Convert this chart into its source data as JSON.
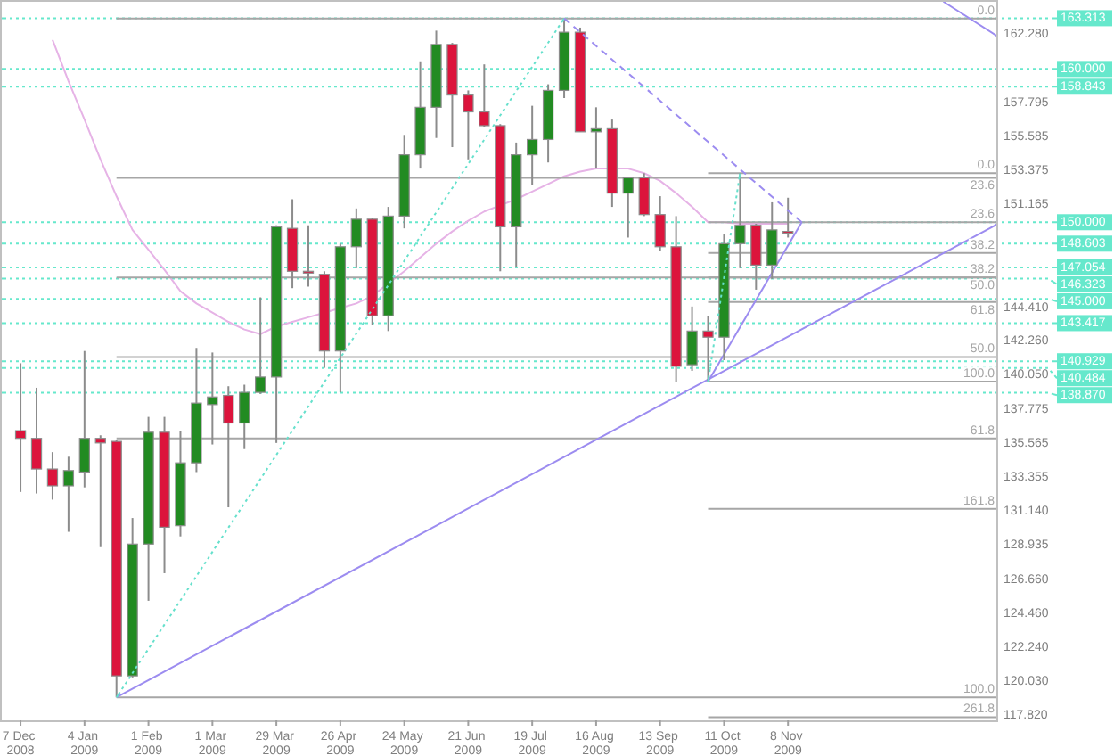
{
  "chart_data": {
    "type": "candlestick",
    "x": [
      "2008-12-07",
      "2008-12-14",
      "2008-12-21",
      "2008-12-28",
      "2009-01-04",
      "2009-01-11",
      "2009-01-18",
      "2009-01-25",
      "2009-02-01",
      "2009-02-08",
      "2009-02-15",
      "2009-02-22",
      "2009-03-01",
      "2009-03-08",
      "2009-03-15",
      "2009-03-22",
      "2009-03-29",
      "2009-04-05",
      "2009-04-12",
      "2009-04-19",
      "2009-04-26",
      "2009-05-03",
      "2009-05-10",
      "2009-05-17",
      "2009-05-24",
      "2009-05-31",
      "2009-06-07",
      "2009-06-14",
      "2009-06-21",
      "2009-06-28",
      "2009-07-05",
      "2009-07-12",
      "2009-07-19",
      "2009-07-26",
      "2009-08-02",
      "2009-08-09",
      "2009-08-16",
      "2009-08-23",
      "2009-08-30",
      "2009-09-06",
      "2009-09-13",
      "2009-09-20",
      "2009-09-27",
      "2009-10-04",
      "2009-10-11",
      "2009-10-18",
      "2009-10-25",
      "2009-11-01",
      "2009-11-08"
    ],
    "ohlc": [
      [
        136.4,
        140.8,
        132.4,
        135.9
      ],
      [
        135.9,
        139.2,
        132.3,
        133.9
      ],
      [
        133.9,
        135.0,
        131.9,
        132.8
      ],
      [
        132.8,
        134.7,
        129.8,
        133.8
      ],
      [
        133.7,
        141.6,
        132.7,
        135.9
      ],
      [
        135.9,
        136.1,
        128.8,
        135.6
      ],
      [
        135.7,
        135.8,
        119.0,
        120.4
      ],
      [
        120.4,
        130.7,
        120.3,
        129.0
      ],
      [
        129.0,
        137.3,
        125.3,
        136.3
      ],
      [
        136.3,
        137.3,
        127.1,
        130.1
      ],
      [
        130.2,
        136.4,
        129.5,
        134.3
      ],
      [
        134.3,
        141.8,
        133.7,
        138.2
      ],
      [
        138.1,
        141.5,
        135.5,
        138.6
      ],
      [
        138.7,
        139.3,
        131.4,
        136.9
      ],
      [
        136.9,
        139.4,
        135.2,
        138.9
      ],
      [
        138.9,
        145.1,
        138.8,
        139.9
      ],
      [
        139.9,
        149.8,
        135.6,
        149.7
      ],
      [
        149.6,
        151.5,
        145.7,
        146.8
      ],
      [
        146.8,
        149.8,
        145.8,
        146.7
      ],
      [
        146.6,
        146.8,
        140.5,
        141.6
      ],
      [
        141.6,
        148.6,
        138.9,
        148.4
      ],
      [
        148.4,
        150.9,
        147.0,
        150.2
      ],
      [
        150.2,
        150.3,
        143.3,
        143.9
      ],
      [
        143.9,
        151.0,
        142.9,
        150.4
      ],
      [
        150.4,
        155.7,
        149.6,
        154.4
      ],
      [
        154.4,
        160.5,
        153.5,
        157.5
      ],
      [
        157.5,
        162.5,
        155.5,
        161.6
      ],
      [
        161.6,
        161.7,
        154.9,
        158.3
      ],
      [
        158.3,
        158.6,
        154.1,
        157.2
      ],
      [
        157.2,
        160.3,
        156.2,
        156.3
      ],
      [
        156.3,
        156.4,
        146.8,
        149.7
      ],
      [
        149.7,
        155.2,
        147.1,
        154.4
      ],
      [
        154.4,
        157.6,
        152.4,
        155.4
      ],
      [
        155.4,
        159.0,
        153.9,
        158.6
      ],
      [
        158.6,
        163.3,
        158.1,
        162.4
      ],
      [
        162.4,
        162.7,
        155.9,
        155.9
      ],
      [
        155.9,
        157.5,
        153.5,
        156.1
      ],
      [
        156.1,
        156.7,
        151.0,
        151.9
      ],
      [
        151.9,
        152.9,
        149.0,
        152.9
      ],
      [
        152.9,
        153.2,
        150.4,
        150.5
      ],
      [
        150.5,
        151.7,
        148.1,
        148.4
      ],
      [
        148.4,
        150.4,
        139.6,
        140.6
      ],
      [
        140.7,
        144.5,
        140.3,
        142.9
      ],
      [
        142.9,
        143.9,
        139.6,
        142.5
      ],
      [
        142.5,
        149.2,
        141.0,
        148.6
      ],
      [
        148.6,
        153.2,
        147.0,
        149.8
      ],
      [
        149.8,
        149.9,
        145.6,
        147.2
      ],
      [
        147.2,
        151.3,
        146.3,
        149.5
      ],
      [
        149.4,
        151.6,
        149.0,
        149.3
      ]
    ],
    "colors": [
      "#dc143c",
      "#dc143c",
      "#dc143c",
      "#228b22",
      "#228b22",
      "#dc143c",
      "#dc143c",
      "#228b22",
      "#228b22",
      "#dc143c",
      "#228b22",
      "#228b22",
      "#228b22",
      "#dc143c",
      "#228b22",
      "#228b22",
      "#228b22",
      "#dc143c",
      "#dc143c",
      "#dc143c",
      "#228b22",
      "#228b22",
      "#dc143c",
      "#228b22",
      "#228b22",
      "#228b22",
      "#228b22",
      "#dc143c",
      "#dc143c",
      "#dc143c",
      "#dc143c",
      "#228b22",
      "#228b22",
      "#228b22",
      "#228b22",
      "#dc143c",
      "#228b22",
      "#dc143c",
      "#228b22",
      "#dc143c",
      "#dc143c",
      "#dc143c",
      "#228b22",
      "#dc143c",
      "#228b22",
      "#228b22",
      "#dc143c",
      "#228b22",
      "#dc143c"
    ],
    "series": [
      {
        "type": "line",
        "color": "#e6b3e6",
        "values": [
          null,
          null,
          161.9,
          159.2,
          156.7,
          154.1,
          151.7,
          149.5,
          148.2,
          146.9,
          145.5,
          144.7,
          144.1,
          143.5,
          143.0,
          142.7,
          143.2,
          143.5,
          143.8,
          144.1,
          144.4,
          144.7,
          145.2,
          146.0,
          146.8,
          147.7,
          148.6,
          149.4,
          150.1,
          150.7,
          151.1,
          151.5,
          152.0,
          152.5,
          153.0,
          153.3,
          153.5,
          153.5,
          153.5,
          153.2,
          152.7,
          151.9,
          151.0,
          150.0,
          150.0,
          149.9,
          149.9,
          149.9,
          149.9
        ]
      },
      {
        "type": "line",
        "name": "0.0",
        "color": "#a6a6a6",
        "x": [
          "2009-01-18",
          "2010-02-08"
        ],
        "values": [
          163.3,
          163.3
        ]
      },
      {
        "type": "line",
        "name": "23.6",
        "color": "#a6a6a6",
        "x": [
          "2009-01-18",
          "2010-02-08"
        ],
        "values": [
          152.9,
          152.9
        ]
      },
      {
        "type": "line",
        "name": "38.2",
        "color": "#a6a6a6",
        "x": [
          "2009-01-18",
          "2010-02-08"
        ],
        "values": [
          146.4,
          146.4
        ]
      },
      {
        "type": "line",
        "name": "50.0",
        "color": "#a6a6a6",
        "x": [
          "2009-01-18",
          "2010-02-08"
        ],
        "values": [
          141.2,
          141.2
        ]
      },
      {
        "type": "line",
        "name": "61.8",
        "color": "#a6a6a6",
        "x": [
          "2009-01-18",
          "2010-02-08"
        ],
        "values": [
          135.9,
          135.9
        ]
      },
      {
        "type": "line",
        "name": "100.0",
        "color": "#a6a6a6",
        "x": [
          "2009-01-18",
          "2010-02-08"
        ],
        "values": [
          119.0,
          119.0
        ]
      },
      {
        "type": "line",
        "name": "0.0",
        "color": "#a6a6a6",
        "x": [
          "2009-10-04",
          "2010-02-08"
        ],
        "values": [
          153.2,
          153.2
        ]
      },
      {
        "type": "line",
        "name": "23.6",
        "color": "#a6a6a6",
        "x": [
          "2009-10-04",
          "2010-02-08"
        ],
        "values": [
          150.0,
          150.0
        ]
      },
      {
        "type": "line",
        "name": "38.2",
        "color": "#a6a6a6",
        "x": [
          "2009-10-04",
          "2010-02-08"
        ],
        "values": [
          148.0,
          148.0
        ]
      },
      {
        "type": "line",
        "name": "50.0",
        "color": "#a6a6a6",
        "x": [
          "2009-10-04",
          "2010-02-08"
        ],
        "values": [
          146.4,
          146.4
        ]
      },
      {
        "type": "line",
        "name": "61.8",
        "color": "#a6a6a6",
        "x": [
          "2009-10-04",
          "2010-02-08"
        ],
        "values": [
          144.8,
          144.8
        ]
      },
      {
        "type": "line",
        "name": "100.0",
        "color": "#a6a6a6",
        "x": [
          "2009-10-04",
          "2010-02-08"
        ],
        "values": [
          139.6,
          139.6
        ]
      },
      {
        "type": "line",
        "name": "161.8",
        "color": "#a6a6a6",
        "x": [
          "2009-10-04",
          "2010-02-08"
        ],
        "values": [
          131.3,
          131.3
        ]
      },
      {
        "type": "line",
        "name": "261.8",
        "color": "#a6a6a6",
        "x": [
          "2009-10-04",
          "2010-02-08"
        ],
        "values": [
          117.7,
          117.7
        ]
      },
      {
        "type": "line",
        "color": "#66e0cc",
        "line_style": "dotted",
        "x": [
          "2009-01-18",
          "2009-08-02"
        ],
        "values": [
          119.0,
          163.3
        ]
      },
      {
        "type": "line",
        "color": "#66e0cc",
        "line_style": "dotted",
        "x": [
          "2009-10-04",
          "2009-10-18"
        ],
        "values": [
          139.6,
          153.2
        ]
      },
      {
        "type": "line",
        "color": "#9c8cf0",
        "x": [
          "2009-01-18",
          "2010-02-08"
        ],
        "values": [
          119.0,
          149.9
        ]
      },
      {
        "type": "line",
        "color": "#9c8cf0",
        "x": [
          "2009-10-04",
          "2009-11-14"
        ],
        "values": [
          139.6,
          150.0
        ]
      },
      {
        "type": "line",
        "color": "#9c8cf0",
        "line_style": "dashed",
        "x": [
          "2009-08-02",
          "2009-11-14"
        ],
        "values": [
          163.3,
          150.0
        ]
      },
      {
        "type": "line",
        "color": "#9c8cf0",
        "x": [
          "2010-01-15",
          "2010-02-08"
        ],
        "values": [
          164.4,
          162.1
        ]
      }
    ],
    "ref_lines": [
      {
        "axis": "y",
        "value": 163.313,
        "label": "163.313",
        "color": "#66e8cc",
        "line_style": "dotted"
      },
      {
        "axis": "y",
        "value": 160.0,
        "label": "160.000",
        "color": "#66e8cc",
        "line_style": "dotted"
      },
      {
        "axis": "y",
        "value": 158.843,
        "label": "158.843",
        "color": "#66e8cc",
        "line_style": "dotted"
      },
      {
        "axis": "y",
        "value": 150.0,
        "label": "150.000",
        "color": "#66e8cc",
        "line_style": "dotted"
      },
      {
        "axis": "y",
        "value": 148.603,
        "label": "148.603",
        "color": "#66e8cc",
        "line_style": "dotted"
      },
      {
        "axis": "y",
        "value": 147.054,
        "label": "147.054",
        "color": "#66e8cc",
        "line_style": "dotted"
      },
      {
        "axis": "y",
        "value": 146.323,
        "label": "146.323",
        "color": "#66e8cc",
        "line_style": "dotted"
      },
      {
        "axis": "y",
        "value": 145.0,
        "label": "145.000",
        "color": "#66e8cc",
        "line_style": "dotted"
      },
      {
        "axis": "y",
        "value": 143.417,
        "label": "143.417",
        "color": "#66e8cc",
        "line_style": "dotted"
      },
      {
        "axis": "y",
        "value": 140.929,
        "label": "140.929",
        "color": "#66e8cc",
        "line_style": "dotted"
      },
      {
        "axis": "y",
        "value": 140.484,
        "label": "140.484",
        "color": "#66e8cc",
        "line_style": "dotted"
      },
      {
        "axis": "y",
        "value": 138.87,
        "label": "138.870",
        "color": "#66e8cc",
        "line_style": "dotted"
      }
    ],
    "xlim": [
      "2008-11-28",
      "2010-02-08"
    ],
    "xticks": [
      {
        "value": "2008-12-07",
        "label": "7 Dec 2008"
      },
      {
        "value": "2009-01-04",
        "label": "4 Jan 2009"
      },
      {
        "value": "2009-02-01",
        "label": "1 Feb 2009"
      },
      {
        "value": "2009-03-01",
        "label": "1 Mar 2009"
      },
      {
        "value": "2009-03-29",
        "label": "29 Mar 2009"
      },
      {
        "value": "2009-04-26",
        "label": "26 Apr 2009"
      },
      {
        "value": "2009-05-24",
        "label": "24 May 2009"
      },
      {
        "value": "2009-06-21",
        "label": "21 Jun 2009"
      },
      {
        "value": "2009-07-19",
        "label": "19 Jul 2009"
      },
      {
        "value": "2009-08-16",
        "label": "16 Aug 2009"
      },
      {
        "value": "2009-09-13",
        "label": "13 Sep 2009"
      },
      {
        "value": "2009-10-11",
        "label": "11 Oct 2009"
      },
      {
        "value": "2009-11-08",
        "label": "8 Nov 2009"
      }
    ],
    "ylim": [
      117.5,
      164.5
    ],
    "yticks": [
      {
        "value": 117.82,
        "label": "117.820"
      },
      {
        "value": 120.03,
        "label": "120.030"
      },
      {
        "value": 122.24,
        "label": "122.240"
      },
      {
        "value": 124.46,
        "label": "124.460"
      },
      {
        "value": 126.66,
        "label": "126.660"
      },
      {
        "value": 128.935,
        "label": "128.935"
      },
      {
        "value": 131.14,
        "label": "131.140"
      },
      {
        "value": 133.355,
        "label": "133.355"
      },
      {
        "value": 135.565,
        "label": "135.565"
      },
      {
        "value": 137.775,
        "label": "137.775"
      },
      {
        "value": 140.05,
        "label": "140.050"
      },
      {
        "value": 142.26,
        "label": "142.260"
      },
      {
        "value": 144.41,
        "label": "144.410"
      },
      {
        "value": 151.165,
        "label": "151.165"
      },
      {
        "value": 153.375,
        "label": "153.375"
      },
      {
        "value": 155.585,
        "label": "155.585"
      },
      {
        "value": 157.795,
        "label": "157.795"
      },
      {
        "value": 162.28,
        "label": "162.280"
      }
    ]
  }
}
